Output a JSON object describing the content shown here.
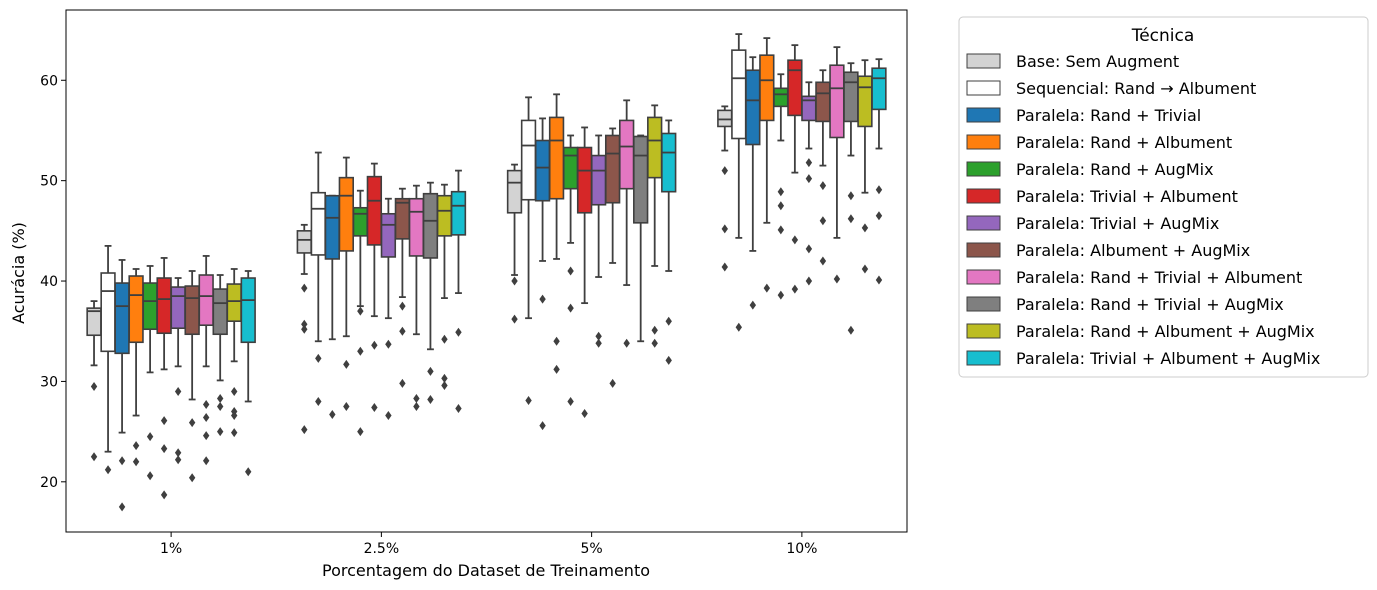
{
  "chart_data": {
    "type": "box",
    "title": "",
    "xlabel": "Porcentagem do Dataset de Treinamento",
    "ylabel": "Acurácia (%)",
    "categories": [
      "1%",
      "2.5%",
      "5%",
      "10%"
    ],
    "ylim": [
      15,
      67
    ],
    "yticks": [
      20,
      30,
      40,
      50,
      60
    ],
    "grid": false,
    "legend": {
      "title": "Técnica",
      "placement": "outside-right"
    },
    "series": [
      {
        "name": "Base: Sem Augment",
        "color": "#d3d3d3",
        "boxes": [
          {
            "q1": 34.6,
            "median": 37.0,
            "q3": 37.3,
            "whisker_low": 31.6,
            "whisker_high": 38.0,
            "outliers": [
              29.5,
              22.5
            ]
          },
          {
            "q1": 42.8,
            "median": 44.1,
            "q3": 45.0,
            "whisker_low": 40.7,
            "whisker_high": 45.6,
            "outliers": [
              39.3,
              35.7,
              35.2,
              25.2
            ]
          },
          {
            "q1": 46.8,
            "median": 49.8,
            "q3": 51.0,
            "whisker_low": 40.6,
            "whisker_high": 51.6,
            "outliers": [
              40.0,
              36.2
            ]
          },
          {
            "q1": 55.4,
            "median": 56.1,
            "q3": 57.0,
            "whisker_low": 53.0,
            "whisker_high": 57.4,
            "outliers": [
              51.0,
              45.2,
              41.4
            ]
          }
        ]
      },
      {
        "name": "Sequencial: Rand → Albument",
        "color": "#ffffff",
        "boxes": [
          {
            "q1": 33.0,
            "median": 39.0,
            "q3": 40.8,
            "whisker_low": 23.0,
            "whisker_high": 43.5,
            "outliers": [
              21.2
            ]
          },
          {
            "q1": 42.6,
            "median": 47.2,
            "q3": 48.8,
            "whisker_low": 34.0,
            "whisker_high": 52.8,
            "outliers": [
              32.3,
              28.0
            ]
          },
          {
            "q1": 48.1,
            "median": 53.5,
            "q3": 56.0,
            "whisker_low": 36.3,
            "whisker_high": 58.3,
            "outliers": [
              28.1
            ]
          },
          {
            "q1": 54.2,
            "median": 60.2,
            "q3": 63.0,
            "whisker_low": 44.3,
            "whisker_high": 64.6,
            "outliers": [
              35.4
            ]
          }
        ]
      },
      {
        "name": "Paralela: Rand + Trivial",
        "color": "#1f77b4",
        "boxes": [
          {
            "q1": 32.8,
            "median": 37.5,
            "q3": 39.8,
            "whisker_low": 24.9,
            "whisker_high": 42.1,
            "outliers": [
              22.1,
              17.5
            ]
          },
          {
            "q1": 42.2,
            "median": 46.3,
            "q3": 48.5,
            "whisker_low": 34.2,
            "whisker_high": 48.5,
            "outliers": [
              26.7
            ]
          },
          {
            "q1": 48.0,
            "median": 51.3,
            "q3": 54.0,
            "whisker_low": 42.0,
            "whisker_high": 56.2,
            "outliers": [
              38.2,
              25.6
            ]
          },
          {
            "q1": 53.6,
            "median": 58.0,
            "q3": 61.0,
            "whisker_low": 43.0,
            "whisker_high": 62.3,
            "outliers": [
              37.6
            ]
          }
        ]
      },
      {
        "name": "Paralela: Rand + Albument",
        "color": "#ff7f0e",
        "boxes": [
          {
            "q1": 33.9,
            "median": 38.6,
            "q3": 40.5,
            "whisker_low": 26.6,
            "whisker_high": 41.2,
            "outliers": [
              23.6,
              22.0
            ]
          },
          {
            "q1": 43.0,
            "median": 48.5,
            "q3": 50.3,
            "whisker_low": 34.5,
            "whisker_high": 52.3,
            "outliers": [
              31.7,
              27.5
            ]
          },
          {
            "q1": 48.2,
            "median": 54.0,
            "q3": 56.3,
            "whisker_low": 42.2,
            "whisker_high": 58.6,
            "outliers": [
              34.0,
              31.2
            ]
          },
          {
            "q1": 56.0,
            "median": 60.0,
            "q3": 62.5,
            "whisker_low": 45.8,
            "whisker_high": 64.2,
            "outliers": [
              39.3
            ]
          }
        ]
      },
      {
        "name": "Paralela: Rand + AugMix",
        "color": "#2ca02c",
        "boxes": [
          {
            "q1": 35.2,
            "median": 38.0,
            "q3": 39.8,
            "whisker_low": 30.9,
            "whisker_high": 41.5,
            "outliers": [
              24.5,
              20.6
            ]
          },
          {
            "q1": 44.5,
            "median": 46.7,
            "q3": 47.3,
            "whisker_low": 37.5,
            "whisker_high": 49.0,
            "outliers": [
              37.0,
              33.0,
              25.0
            ]
          },
          {
            "q1": 49.2,
            "median": 52.5,
            "q3": 53.3,
            "whisker_low": 43.8,
            "whisker_high": 54.5,
            "outliers": [
              41.0,
              37.3,
              28.0
            ]
          },
          {
            "q1": 57.4,
            "median": 58.6,
            "q3": 59.2,
            "whisker_low": 54.0,
            "whisker_high": 60.6,
            "outliers": [
              48.9,
              47.5,
              45.1,
              38.6
            ]
          }
        ]
      },
      {
        "name": "Paralela: Trivial + Albument",
        "color": "#d62728",
        "boxes": [
          {
            "q1": 34.8,
            "median": 38.2,
            "q3": 40.3,
            "whisker_low": 31.2,
            "whisker_high": 42.3,
            "outliers": [
              26.1,
              23.3,
              18.7
            ]
          },
          {
            "q1": 43.6,
            "median": 48.0,
            "q3": 50.4,
            "whisker_low": 36.5,
            "whisker_high": 51.7,
            "outliers": [
              33.6,
              27.4
            ]
          },
          {
            "q1": 46.8,
            "median": 51.0,
            "q3": 53.3,
            "whisker_low": 37.8,
            "whisker_high": 55.3,
            "outliers": [
              26.8
            ]
          },
          {
            "q1": 56.5,
            "median": 61.0,
            "q3": 62.0,
            "whisker_low": 50.8,
            "whisker_high": 63.5,
            "outliers": [
              44.1,
              39.2
            ]
          }
        ]
      },
      {
        "name": "Paralela: Trivial + AugMix",
        "color": "#9467bd",
        "boxes": [
          {
            "q1": 35.3,
            "median": 38.5,
            "q3": 39.4,
            "whisker_low": 31.5,
            "whisker_high": 40.3,
            "outliers": [
              29.0,
              22.9,
              22.2
            ]
          },
          {
            "q1": 42.4,
            "median": 45.6,
            "q3": 46.7,
            "whisker_low": 36.3,
            "whisker_high": 48.2,
            "outliers": [
              33.7,
              26.6
            ]
          },
          {
            "q1": 47.6,
            "median": 51.0,
            "q3": 52.5,
            "whisker_low": 40.4,
            "whisker_high": 54.5,
            "outliers": [
              34.5,
              33.8
            ]
          },
          {
            "q1": 56.0,
            "median": 58.0,
            "q3": 58.4,
            "whisker_low": 53.2,
            "whisker_high": 59.8,
            "outliers": [
              51.8,
              50.2,
              43.2,
              40.0
            ]
          }
        ]
      },
      {
        "name": "Paralela: Albument + AugMix",
        "color": "#8c564b",
        "boxes": [
          {
            "q1": 34.7,
            "median": 38.3,
            "q3": 39.5,
            "whisker_low": 28.2,
            "whisker_high": 41.0,
            "outliers": [
              25.9,
              20.4
            ]
          },
          {
            "q1": 44.2,
            "median": 47.8,
            "q3": 48.2,
            "whisker_low": 38.4,
            "whisker_high": 49.2,
            "outliers": [
              37.5,
              35.0,
              29.8
            ]
          },
          {
            "q1": 47.8,
            "median": 52.7,
            "q3": 54.5,
            "whisker_low": 41.8,
            "whisker_high": 55.2,
            "outliers": [
              29.8
            ]
          },
          {
            "q1": 55.9,
            "median": 58.7,
            "q3": 59.8,
            "whisker_low": 51.5,
            "whisker_high": 61.0,
            "outliers": [
              49.5,
              46.0,
              42.0
            ]
          }
        ]
      },
      {
        "name": "Paralela: Rand + Trivial + Albument",
        "color": "#e377c2",
        "boxes": [
          {
            "q1": 35.6,
            "median": 38.5,
            "q3": 40.6,
            "whisker_low": 31.5,
            "whisker_high": 42.5,
            "outliers": [
              27.7,
              26.4,
              24.6,
              22.1
            ]
          },
          {
            "q1": 42.5,
            "median": 46.9,
            "q3": 48.2,
            "whisker_low": 34.7,
            "whisker_high": 49.5,
            "outliers": [
              28.3,
              27.5
            ]
          },
          {
            "q1": 49.2,
            "median": 53.4,
            "q3": 56.0,
            "whisker_low": 39.6,
            "whisker_high": 58.0,
            "outliers": [
              33.8
            ]
          },
          {
            "q1": 54.3,
            "median": 59.2,
            "q3": 61.5,
            "whisker_low": 44.3,
            "whisker_high": 63.3,
            "outliers": [
              40.2
            ]
          }
        ]
      },
      {
        "name": "Paralela: Rand + Trivial + AugMix",
        "color": "#7f7f7f",
        "boxes": [
          {
            "q1": 34.7,
            "median": 37.8,
            "q3": 39.2,
            "whisker_low": 30.1,
            "whisker_high": 40.6,
            "outliers": [
              28.3,
              27.5,
              25.0
            ]
          },
          {
            "q1": 42.3,
            "median": 46.0,
            "q3": 48.7,
            "whisker_low": 33.2,
            "whisker_high": 49.8,
            "outliers": [
              31.0,
              28.2
            ]
          },
          {
            "q1": 45.8,
            "median": 52.5,
            "q3": 54.4,
            "whisker_low": 34.0,
            "whisker_high": 54.5,
            "outliers": []
          },
          {
            "q1": 55.9,
            "median": 59.8,
            "q3": 60.8,
            "whisker_low": 52.5,
            "whisker_high": 61.7,
            "outliers": [
              48.5,
              46.2,
              35.1
            ]
          }
        ]
      },
      {
        "name": "Paralela: Rand + Albument + AugMix",
        "color": "#bcbd22",
        "boxes": [
          {
            "q1": 36.0,
            "median": 38.0,
            "q3": 39.7,
            "whisker_low": 32.0,
            "whisker_high": 41.2,
            "outliers": [
              29.0,
              27.0,
              26.6,
              24.9
            ]
          },
          {
            "q1": 44.5,
            "median": 47.0,
            "q3": 48.5,
            "whisker_low": 38.3,
            "whisker_high": 49.6,
            "outliers": [
              34.2,
              30.3,
              29.6
            ]
          },
          {
            "q1": 50.3,
            "median": 54.0,
            "q3": 56.3,
            "whisker_low": 41.5,
            "whisker_high": 57.5,
            "outliers": [
              35.1,
              33.8
            ]
          },
          {
            "q1": 55.4,
            "median": 59.3,
            "q3": 60.4,
            "whisker_low": 48.8,
            "whisker_high": 62.0,
            "outliers": [
              45.3,
              41.2
            ]
          }
        ]
      },
      {
        "name": "Paralela: Trivial + Albument + AugMix",
        "color": "#17becf",
        "boxes": [
          {
            "q1": 33.9,
            "median": 38.1,
            "q3": 40.3,
            "whisker_low": 28.0,
            "whisker_high": 41.0,
            "outliers": [
              21.0
            ]
          },
          {
            "q1": 44.6,
            "median": 47.5,
            "q3": 48.9,
            "whisker_low": 38.8,
            "whisker_high": 51.0,
            "outliers": [
              34.9,
              27.3
            ]
          },
          {
            "q1": 48.9,
            "median": 52.8,
            "q3": 54.7,
            "whisker_low": 41.0,
            "whisker_high": 56.0,
            "outliers": [
              36.0,
              32.1
            ]
          },
          {
            "q1": 57.1,
            "median": 60.2,
            "q3": 61.2,
            "whisker_low": 53.2,
            "whisker_high": 62.1,
            "outliers": [
              49.1,
              46.5,
              40.1
            ]
          }
        ]
      }
    ]
  }
}
